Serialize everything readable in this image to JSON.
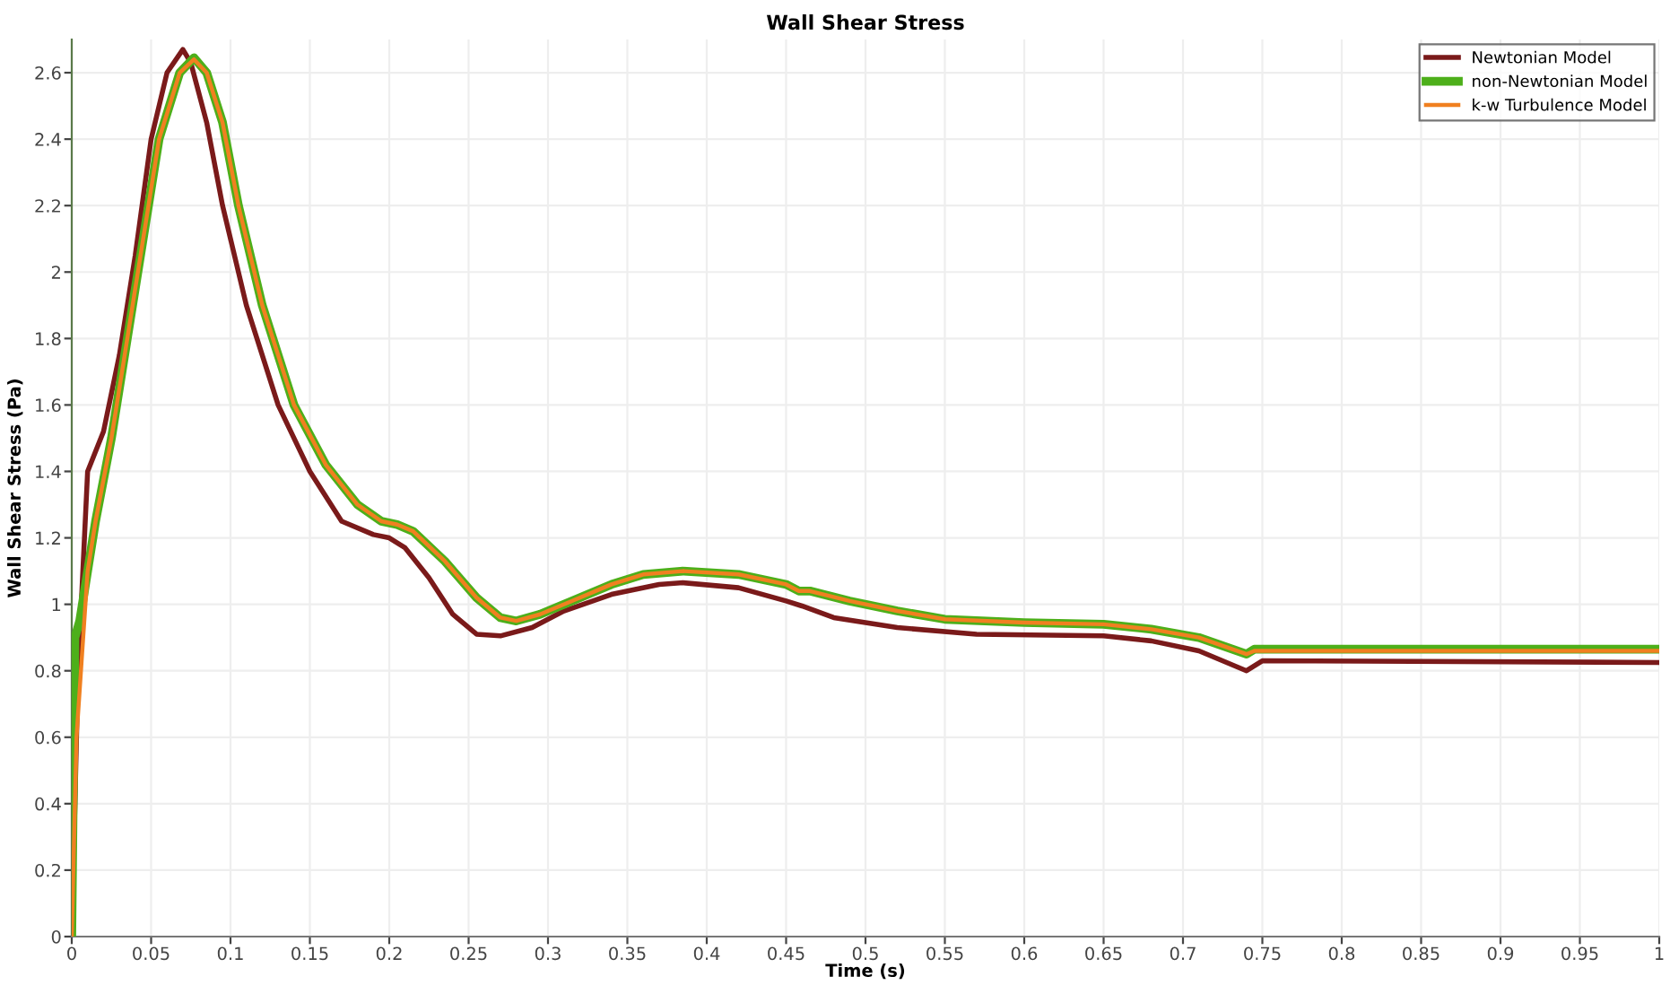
{
  "chart_data": {
    "type": "line",
    "title": "Wall Shear Stress",
    "xlabel": "Time (s)",
    "ylabel": "Wall Shear Stress (Pa)",
    "xlim": [
      0,
      1
    ],
    "ylim": [
      0,
      2.7
    ],
    "xticks": [
      0,
      0.05,
      0.1,
      0.15,
      0.2,
      0.25,
      0.3,
      0.35,
      0.4,
      0.45,
      0.5,
      0.55,
      0.6,
      0.65,
      0.7,
      0.75,
      0.8,
      0.85,
      0.9,
      0.95,
      1
    ],
    "yticks": [
      0,
      0.2,
      0.4,
      0.6,
      0.8,
      1,
      1.2,
      1.4,
      1.6,
      1.8,
      2,
      2.2,
      2.4,
      2.6
    ],
    "grid": true,
    "legend": "top right",
    "marker": "none",
    "line_style": "solid",
    "series": [
      {
        "name": "Newtonian Model",
        "color": "#7a1a1a",
        "x": [
          0,
          0.004,
          0.01,
          0.02,
          0.03,
          0.04,
          0.05,
          0.06,
          0.07,
          0.075,
          0.085,
          0.095,
          0.11,
          0.13,
          0.15,
          0.17,
          0.19,
          0.2,
          0.21,
          0.225,
          0.24,
          0.255,
          0.27,
          0.29,
          0.31,
          0.34,
          0.37,
          0.385,
          0.42,
          0.45,
          0.46,
          0.48,
          0.52,
          0.57,
          0.65,
          0.68,
          0.71,
          0.74,
          0.75,
          1.0
        ],
        "values": [
          0,
          0.8,
          1.4,
          1.52,
          1.75,
          2.05,
          2.4,
          2.6,
          2.67,
          2.63,
          2.45,
          2.2,
          1.9,
          1.6,
          1.4,
          1.25,
          1.21,
          1.2,
          1.17,
          1.08,
          0.97,
          0.91,
          0.905,
          0.93,
          0.98,
          1.03,
          1.06,
          1.065,
          1.05,
          1.01,
          0.995,
          0.96,
          0.93,
          0.91,
          0.905,
          0.89,
          0.86,
          0.8,
          0.83,
          0.825
        ]
      },
      {
        "name": "non-Newtonian Model",
        "color": "#4daf1a",
        "x": [
          0,
          0.002,
          0.005,
          0.01,
          0.015,
          0.025,
          0.035,
          0.045,
          0.055,
          0.068,
          0.077,
          0.085,
          0.095,
          0.105,
          0.12,
          0.14,
          0.16,
          0.18,
          0.195,
          0.205,
          0.215,
          0.235,
          0.255,
          0.27,
          0.28,
          0.295,
          0.315,
          0.34,
          0.36,
          0.385,
          0.42,
          0.45,
          0.458,
          0.465,
          0.49,
          0.52,
          0.55,
          0.6,
          0.65,
          0.68,
          0.71,
          0.74,
          0.745,
          1.0
        ],
        "values": [
          0,
          0.9,
          0.95,
          1.1,
          1.25,
          1.5,
          1.8,
          2.1,
          2.4,
          2.6,
          2.645,
          2.6,
          2.45,
          2.2,
          1.9,
          1.6,
          1.42,
          1.3,
          1.25,
          1.24,
          1.22,
          1.13,
          1.02,
          0.96,
          0.95,
          0.97,
          1.01,
          1.06,
          1.09,
          1.1,
          1.09,
          1.06,
          1.04,
          1.04,
          1.01,
          0.98,
          0.955,
          0.945,
          0.94,
          0.925,
          0.9,
          0.85,
          0.865,
          0.865
        ]
      },
      {
        "name": "k-w Turbulence Model",
        "color": "#f08020",
        "x": [
          0,
          0.003,
          0.01,
          0.015,
          0.025,
          0.035,
          0.045,
          0.055,
          0.068,
          0.077,
          0.085,
          0.095,
          0.105,
          0.12,
          0.14,
          0.16,
          0.18,
          0.195,
          0.205,
          0.215,
          0.235,
          0.255,
          0.27,
          0.28,
          0.295,
          0.315,
          0.34,
          0.36,
          0.385,
          0.42,
          0.45,
          0.458,
          0.465,
          0.49,
          0.52,
          0.55,
          0.6,
          0.65,
          0.68,
          0.71,
          0.74,
          0.745,
          1.0
        ],
        "values": [
          0,
          0.6,
          1.1,
          1.25,
          1.5,
          1.8,
          2.1,
          2.4,
          2.6,
          2.64,
          2.6,
          2.45,
          2.2,
          1.9,
          1.6,
          1.42,
          1.3,
          1.25,
          1.24,
          1.22,
          1.13,
          1.02,
          0.96,
          0.95,
          0.97,
          1.01,
          1.06,
          1.09,
          1.1,
          1.09,
          1.06,
          1.04,
          1.04,
          1.01,
          0.98,
          0.955,
          0.945,
          0.94,
          0.925,
          0.9,
          0.85,
          0.86,
          0.86
        ]
      }
    ]
  }
}
